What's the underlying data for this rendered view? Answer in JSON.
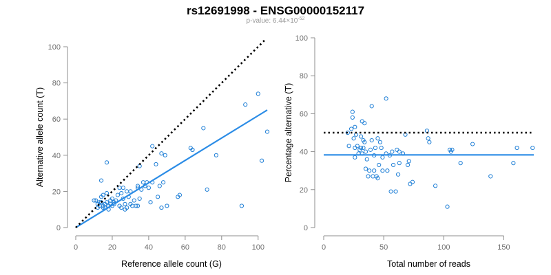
{
  "header": {
    "title": "rs12691998 - ENSG00000152117",
    "pvalue_prefix": "p-value: 6.44×10",
    "pvalue_exponent": "-52"
  },
  "colors": {
    "points": "#1f7fd6",
    "fit_line": "#2b8ce6",
    "reference_line": "#000000",
    "axes": "#8c8c8c"
  },
  "chart_data": [
    {
      "type": "scatter",
      "title": "",
      "xlabel": "Reference allele count (G)",
      "ylabel": "Alternative allele count (T)",
      "xlim": [
        0,
        105
      ],
      "ylim": [
        0,
        100
      ],
      "xticks": [
        0,
        20,
        40,
        60,
        80,
        100
      ],
      "yticks": [
        0,
        20,
        40,
        60,
        80,
        100
      ],
      "reference_line": {
        "style": "dotted",
        "x": [
          0,
          104
        ],
        "y": [
          0,
          104
        ]
      },
      "fit_line": {
        "x": [
          0,
          105
        ],
        "y": [
          0,
          65
        ]
      },
      "points": [
        [
          10,
          15
        ],
        [
          11,
          15
        ],
        [
          12,
          13
        ],
        [
          12,
          11
        ],
        [
          13,
          12
        ],
        [
          13,
          14
        ],
        [
          14,
          14
        ],
        [
          14,
          17
        ],
        [
          14,
          26
        ],
        [
          15,
          18
        ],
        [
          15,
          12
        ],
        [
          15,
          11
        ],
        [
          16,
          13
        ],
        [
          16,
          11
        ],
        [
          17,
          19
        ],
        [
          17,
          14
        ],
        [
          17,
          36
        ],
        [
          18,
          10
        ],
        [
          18,
          12
        ],
        [
          19,
          13
        ],
        [
          19,
          15
        ],
        [
          20,
          12
        ],
        [
          20,
          16
        ],
        [
          21,
          14
        ],
        [
          21,
          13
        ],
        [
          22,
          15
        ],
        [
          23,
          18
        ],
        [
          24,
          22
        ],
        [
          24,
          12
        ],
        [
          25,
          11
        ],
        [
          25,
          19
        ],
        [
          26,
          22
        ],
        [
          26,
          16
        ],
        [
          27,
          13
        ],
        [
          27,
          10
        ],
        [
          28,
          20
        ],
        [
          28,
          11
        ],
        [
          29,
          17
        ],
        [
          30,
          13
        ],
        [
          30,
          20
        ],
        [
          31,
          12
        ],
        [
          32,
          15
        ],
        [
          33,
          12
        ],
        [
          34,
          12
        ],
        [
          34,
          23
        ],
        [
          34,
          22
        ],
        [
          35,
          34
        ],
        [
          35,
          16
        ],
        [
          36,
          21
        ],
        [
          37,
          25
        ],
        [
          38,
          23
        ],
        [
          39,
          25
        ],
        [
          40,
          22
        ],
        [
          41,
          14
        ],
        [
          42,
          25
        ],
        [
          42,
          45
        ],
        [
          44,
          35
        ],
        [
          45,
          17
        ],
        [
          46,
          23
        ],
        [
          47,
          41
        ],
        [
          47,
          11
        ],
        [
          48,
          25
        ],
        [
          49,
          40
        ],
        [
          50,
          12
        ],
        [
          56,
          17
        ],
        [
          57,
          18
        ],
        [
          63,
          44
        ],
        [
          64,
          43
        ],
        [
          64,
          43
        ],
        [
          70,
          55
        ],
        [
          72,
          21
        ],
        [
          77,
          40
        ],
        [
          91,
          12
        ],
        [
          93,
          68
        ],
        [
          100,
          74
        ],
        [
          102,
          37
        ],
        [
          105,
          53
        ]
      ]
    },
    {
      "type": "scatter",
      "title": "",
      "xlabel": "Total number of reads",
      "ylabel": "Percentage alternative (T)",
      "xlim": [
        0,
        175
      ],
      "ylim": [
        0,
        100
      ],
      "xticks": [
        0,
        50,
        100,
        150
      ],
      "yticks": [
        0,
        20,
        40,
        60,
        80,
        100
      ],
      "reference_line": {
        "style": "dotted",
        "x": [
          0,
          175
        ],
        "y": [
          50,
          50
        ]
      },
      "fit_line": {
        "x": [
          0,
          175
        ],
        "y": [
          38.3,
          38.3
        ]
      },
      "points": [
        [
          20,
          50
        ],
        [
          21,
          43
        ],
        [
          23,
          52
        ],
        [
          24,
          61
        ],
        [
          24,
          58
        ],
        [
          25,
          47
        ],
        [
          26,
          42
        ],
        [
          26,
          37
        ],
        [
          26,
          53
        ],
        [
          27,
          49
        ],
        [
          28,
          43
        ],
        [
          29,
          39
        ],
        [
          30,
          41
        ],
        [
          31,
          48
        ],
        [
          31,
          42
        ],
        [
          32,
          56
        ],
        [
          32,
          39
        ],
        [
          33,
          46
        ],
        [
          33,
          42
        ],
        [
          34,
          45
        ],
        [
          34,
          55
        ],
        [
          35,
          40
        ],
        [
          35,
          31
        ],
        [
          36,
          36
        ],
        [
          37,
          27
        ],
        [
          38,
          30
        ],
        [
          39,
          41
        ],
        [
          40,
          46
        ],
        [
          40,
          64
        ],
        [
          41,
          27
        ],
        [
          42,
          30
        ],
        [
          42,
          38
        ],
        [
          43,
          42
        ],
        [
          44,
          27
        ],
        [
          45,
          47
        ],
        [
          45,
          26
        ],
        [
          46,
          33
        ],
        [
          47,
          45
        ],
        [
          48,
          42
        ],
        [
          49,
          37
        ],
        [
          49,
          30
        ],
        [
          52,
          39
        ],
        [
          52,
          68
        ],
        [
          53,
          30
        ],
        [
          55,
          38
        ],
        [
          56,
          19
        ],
        [
          57,
          40
        ],
        [
          58,
          33
        ],
        [
          60,
          19
        ],
        [
          61,
          41
        ],
        [
          62,
          28
        ],
        [
          63,
          34
        ],
        [
          63,
          40
        ],
        [
          66,
          39
        ],
        [
          68,
          49
        ],
        [
          70,
          33
        ],
        [
          71,
          35
        ],
        [
          72,
          23
        ],
        [
          74,
          24
        ],
        [
          86,
          51
        ],
        [
          87,
          47
        ],
        [
          88,
          45
        ],
        [
          93,
          22
        ],
        [
          103,
          11
        ],
        [
          105,
          41
        ],
        [
          106,
          40
        ],
        [
          107,
          41
        ],
        [
          114,
          34
        ],
        [
          124,
          44
        ],
        [
          139,
          27
        ],
        [
          158,
          34
        ],
        [
          161,
          42
        ],
        [
          174,
          42
        ]
      ]
    }
  ]
}
